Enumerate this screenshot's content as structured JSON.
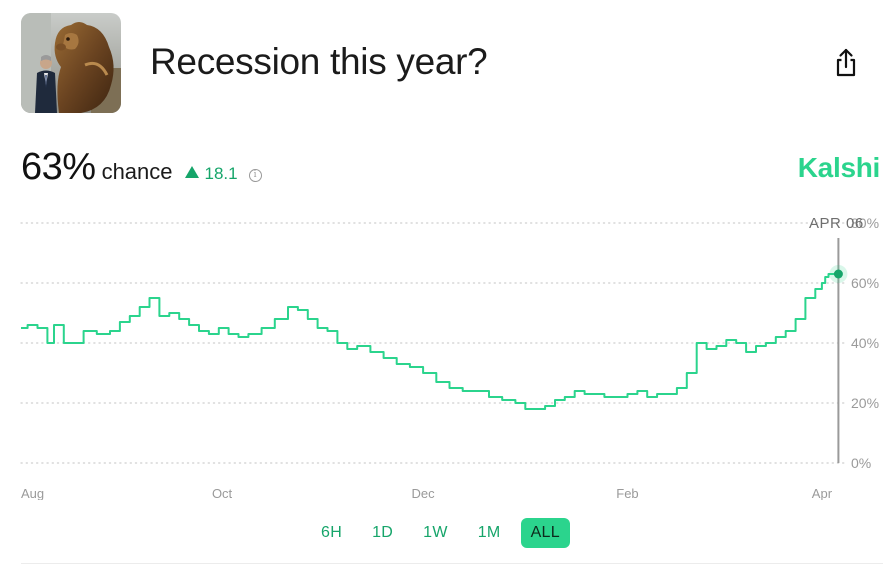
{
  "market": {
    "title": "Recession this year?",
    "probability": "63%",
    "probability_label": "chance",
    "delta": "18.1",
    "info_glyph": "i",
    "brand": "Kalshi"
  },
  "icons": {
    "thumbnail": "bear-statue-photo",
    "share": "share-icon",
    "delta": "triangle-up-icon",
    "info": "info-icon"
  },
  "colors": {
    "accent": "#2bd48d",
    "accent_dark": "#16a56a",
    "line": "#2bd48d",
    "grid": "#cfcfcf",
    "cursor": "#9a9a9a"
  },
  "time_ranges": [
    {
      "label": "6H",
      "active": false
    },
    {
      "label": "1D",
      "active": false
    },
    {
      "label": "1W",
      "active": false
    },
    {
      "label": "1M",
      "active": false
    },
    {
      "label": "ALL",
      "active": true
    }
  ],
  "chart_data": {
    "type": "line",
    "title": "",
    "xlabel": "",
    "ylabel": "",
    "ylim": [
      0,
      80
    ],
    "y_ticks": [
      0,
      20,
      40,
      60,
      80
    ],
    "y_tick_labels": [
      "0%",
      "20%",
      "40%",
      "60%",
      "80%"
    ],
    "x_tick_labels": [
      "Aug",
      "Oct",
      "Dec",
      "Feb",
      "Apr"
    ],
    "x_tick_dates": [
      "2024-08-01",
      "2024-10-01",
      "2024-12-01",
      "2025-02-01",
      "2025-04-01"
    ],
    "x_range": [
      "2024-08-01",
      "2025-04-08"
    ],
    "grid": true,
    "cursor_label": "APR 06",
    "cursor_date": "2025-04-06",
    "series": [
      {
        "x": [
          "2024-08-01",
          "2024-08-03",
          "2024-08-06",
          "2024-08-09",
          "2024-08-11",
          "2024-08-14",
          "2024-08-16",
          "2024-08-20",
          "2024-08-24",
          "2024-08-28",
          "2024-08-31",
          "2024-09-03",
          "2024-09-06",
          "2024-09-09",
          "2024-09-12",
          "2024-09-15",
          "2024-09-18",
          "2024-09-21",
          "2024-09-24",
          "2024-09-27",
          "2024-09-30",
          "2024-10-03",
          "2024-10-06",
          "2024-10-09",
          "2024-10-13",
          "2024-10-17",
          "2024-10-21",
          "2024-10-24",
          "2024-10-27",
          "2024-10-30",
          "2024-11-02",
          "2024-11-05",
          "2024-11-08",
          "2024-11-11",
          "2024-11-15",
          "2024-11-19",
          "2024-11-23",
          "2024-11-27",
          "2024-12-01",
          "2024-12-05",
          "2024-12-09",
          "2024-12-13",
          "2024-12-17",
          "2024-12-21",
          "2024-12-25",
          "2024-12-29",
          "2025-01-01",
          "2025-01-04",
          "2025-01-07",
          "2025-01-10",
          "2025-01-13",
          "2025-01-16",
          "2025-01-19",
          "2025-01-22",
          "2025-01-25",
          "2025-01-28",
          "2025-02-01",
          "2025-02-04",
          "2025-02-07",
          "2025-02-10",
          "2025-02-13",
          "2025-02-16",
          "2025-02-19",
          "2025-02-22",
          "2025-02-25",
          "2025-02-28",
          "2025-03-03",
          "2025-03-06",
          "2025-03-09",
          "2025-03-12",
          "2025-03-15",
          "2025-03-18",
          "2025-03-21",
          "2025-03-24",
          "2025-03-27",
          "2025-03-30",
          "2025-04-01",
          "2025-04-02",
          "2025-04-03",
          "2025-04-04",
          "2025-04-05",
          "2025-04-06"
        ],
        "y": [
          45,
          46,
          45,
          40,
          46,
          40,
          40,
          44,
          43,
          44,
          47,
          49,
          52,
          55,
          49,
          50,
          48,
          46,
          44,
          43,
          45,
          43,
          42,
          43,
          45,
          48,
          52,
          51,
          48,
          45,
          44,
          40,
          38,
          39,
          37,
          35,
          33,
          32,
          30,
          27,
          25,
          24,
          24,
          22,
          21,
          20,
          18,
          18,
          19,
          21,
          22,
          24,
          23,
          23,
          22,
          22,
          23,
          24,
          22,
          23,
          23,
          25,
          30,
          40,
          38,
          39,
          41,
          40,
          37,
          39,
          40,
          42,
          44,
          48,
          55,
          58,
          60,
          62,
          63,
          63,
          63,
          63
        ]
      }
    ],
    "current": {
      "x": "2025-04-06",
      "y": 63
    }
  }
}
